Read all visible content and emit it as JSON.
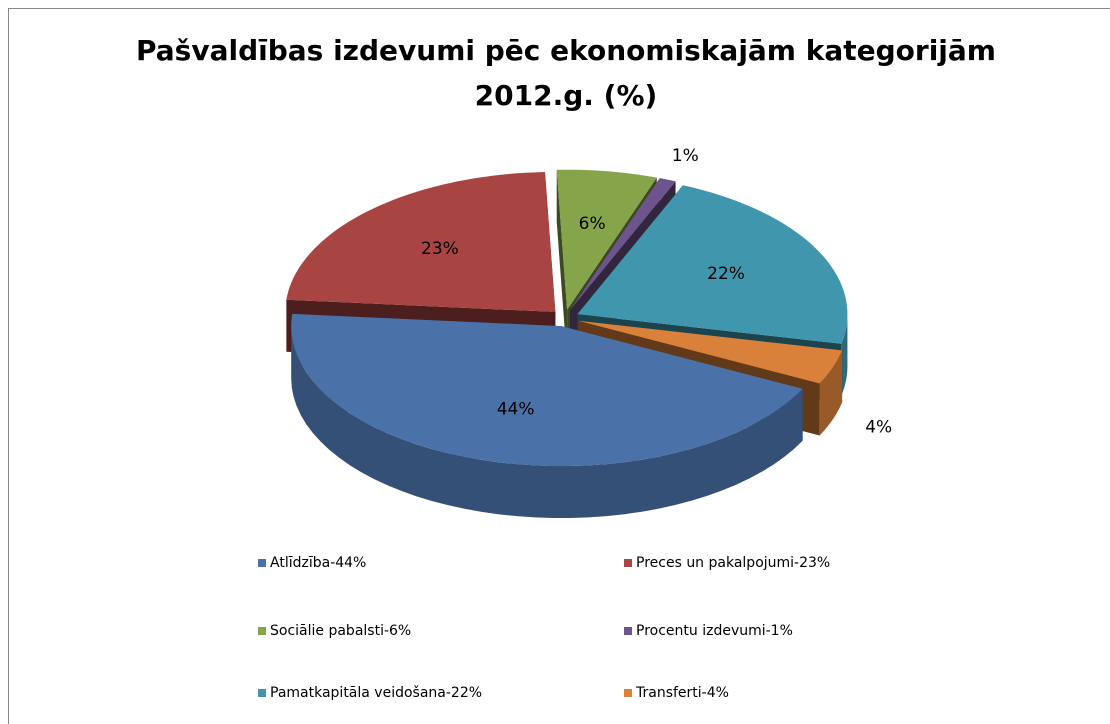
{
  "chart_data": {
    "type": "pie3d",
    "title": [
      "Pašvaldības izdevumi pēc ekonomiskajām kategorijām",
      "2012.g. (%)"
    ],
    "categories": [
      "Atlīdzība-44%",
      "Preces un pakalpojumi-23%",
      "Sociālie pabalsti-6%",
      "Procentu izdevumi-1%",
      "Pamatkapitāla veidošana-22%",
      "Transferti-4%"
    ],
    "values": [
      44,
      23,
      6,
      1,
      22,
      4
    ],
    "value_labels": [
      "44%",
      "23%",
      "6%",
      "1%",
      "22%",
      "4%"
    ],
    "colors": [
      "#4a72a8",
      "#a84442",
      "#86a44a",
      "#6e548d",
      "#3f96ad",
      "#d9813a"
    ],
    "legend": "bottom"
  }
}
